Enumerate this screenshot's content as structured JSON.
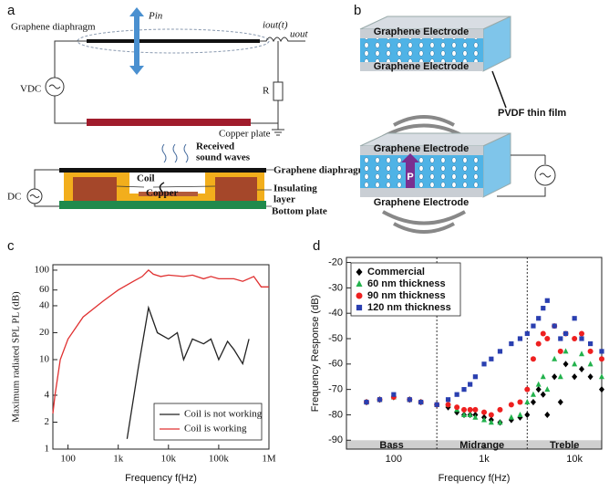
{
  "panel_labels": [
    "a",
    "b",
    "c",
    "d"
  ],
  "diagram_a": {
    "diaphragm_top": "Graphene diaphragm",
    "pressure": "Pin",
    "current": "iout(t)",
    "voltage_out": "uout",
    "source": "VDC",
    "resistor": "R",
    "copper_plate": "Copper plate",
    "waves": [
      "Received",
      "sound waves"
    ],
    "diaphragm_bottom": "Graphene diaphragm",
    "coil": "Coil",
    "insulating": [
      "Insulating",
      "layer"
    ],
    "copper": "Copper",
    "dc": "DC",
    "bottom_plate": "Bottom plate"
  },
  "diagram_b": {
    "top_electrode_1": "Graphene Electrode",
    "bottom_electrode_1": "Graphene Electrode",
    "film": "PVDF thin film",
    "top_electrode_2": "Graphene Electrode",
    "bottom_electrode_2": "Graphene Electrode",
    "polarization": "P"
  },
  "chart_data": [
    {
      "type": "line",
      "xlabel": "Frequency f(Hz)",
      "ylabel": "Maximum radiated SPL PL (dB)",
      "xscale": "log",
      "yscale": "log",
      "xlim": [
        50,
        1000000
      ],
      "ylim": [
        1,
        115
      ],
      "xticks": [
        100,
        {
          "value": 1000,
          "label": "1k"
        },
        {
          "value": 10000,
          "label": "10k"
        },
        {
          "value": 100000,
          "label": "100k"
        },
        {
          "value": 1000000,
          "label": "1M"
        }
      ],
      "yticks": [
        1,
        2,
        4,
        10,
        20,
        40,
        60,
        100
      ],
      "legend": "lower right",
      "series": [
        {
          "name": "Coil is not working",
          "color": "#222222",
          "x": [
            1500,
            2500,
            4000,
            6000,
            10000,
            15000,
            20000,
            30000,
            50000,
            70000,
            100000,
            150000,
            200000,
            300000,
            400000
          ],
          "values": [
            1.3,
            8,
            38,
            20,
            17,
            20,
            10,
            17,
            15,
            17,
            10,
            16,
            13,
            9,
            17
          ]
        },
        {
          "name": "Coil is working",
          "color": "#e03030",
          "x": [
            50,
            55,
            70,
            100,
            200,
            500,
            1000,
            2000,
            3000,
            4000,
            5000,
            7000,
            10000,
            20000,
            30000,
            50000,
            70000,
            100000,
            200000,
            300000,
            500000,
            700000,
            1000000
          ],
          "values": [
            2.5,
            4,
            10,
            17,
            30,
            45,
            60,
            75,
            85,
            100,
            90,
            85,
            88,
            85,
            88,
            80,
            85,
            80,
            80,
            75,
            85,
            65,
            65
          ]
        }
      ]
    },
    {
      "type": "scatter",
      "xlabel": "Frequency f(Hz)",
      "ylabel": "Frequency Response (dB)",
      "xscale": "log",
      "xlim": [
        30,
        20000
      ],
      "ylim": [
        -93.5,
        -18
      ],
      "xticks": [
        100,
        {
          "value": 1000,
          "label": "1k"
        },
        {
          "value": 10000,
          "label": "10k"
        }
      ],
      "yticks": [
        -20,
        -30,
        -40,
        -50,
        -60,
        -70,
        -80,
        -90
      ],
      "legend": "upper left",
      "bands": [
        "Bass",
        "Midrange",
        "Treble"
      ],
      "band_edges": [
        300,
        3000
      ],
      "x": [
        50,
        70,
        100,
        150,
        200,
        300,
        400,
        500,
        600,
        700,
        800,
        1000,
        1200,
        1500,
        2000,
        2500,
        3000,
        3500,
        4000,
        4500,
        5000,
        6000,
        7000,
        8000,
        10000,
        12000,
        15000,
        20000
      ],
      "series": [
        {
          "name": "Commercial",
          "color": "#000000",
          "marker": "diamond",
          "values": [
            -75,
            -74,
            -73,
            -74,
            -75,
            -76,
            -77,
            -79,
            -80,
            -80,
            -80,
            -81,
            -82,
            -83,
            -82,
            -81,
            -80,
            -75,
            -70,
            -72,
            -80,
            -65,
            -75,
            -60,
            -65,
            -62,
            -65,
            -70
          ]
        },
        {
          "name": "60 nm thickness",
          "color": "#22b24c",
          "marker": "triangle",
          "values": [
            -75,
            -74,
            -73,
            -74,
            -75,
            -76,
            -76,
            -78,
            -80,
            -80,
            -81,
            -82,
            -83,
            -83,
            -81,
            -80,
            -75,
            -72,
            -68,
            -65,
            -70,
            -58,
            -65,
            -55,
            -60,
            -56,
            -60,
            -65
          ]
        },
        {
          "name": "90 nm thickness",
          "color": "#ee2020",
          "marker": "circle",
          "values": [
            -75,
            -74,
            -73,
            -74,
            -75,
            -76,
            -76,
            -77,
            -78,
            -78,
            -78,
            -79,
            -80,
            -78,
            -76,
            -75,
            -70,
            -58,
            -52,
            -48,
            -50,
            -45,
            -55,
            -48,
            -50,
            -48,
            -55,
            -58
          ]
        },
        {
          "name": "120 nm thickness",
          "color": "#2a3fb0",
          "marker": "square",
          "values": [
            -75,
            -74,
            -72,
            -74,
            -75,
            -76,
            -74,
            -72,
            -70,
            -68,
            -65,
            -60,
            -58,
            -55,
            -52,
            -50,
            -48,
            -45,
            -42,
            -38,
            -35,
            -45,
            -50,
            -48,
            -42,
            -50,
            -52,
            -55
          ]
        }
      ]
    }
  ]
}
